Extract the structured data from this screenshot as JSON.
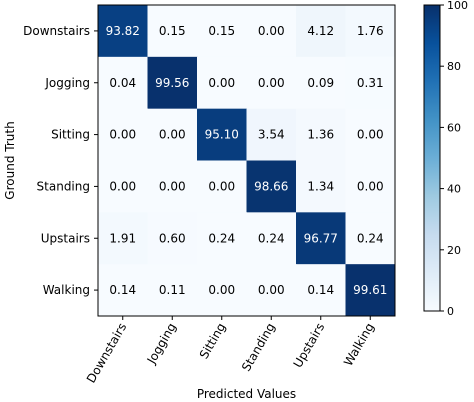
{
  "chart_data": {
    "type": "heatmap",
    "title": "",
    "xlabel": "Predicted Values",
    "ylabel": "Ground Truth",
    "x_categories": [
      "Downstairs",
      "Jogging",
      "Sitting",
      "Standing",
      "Upstairs",
      "Walking"
    ],
    "y_categories": [
      "Downstairs",
      "Jogging",
      "Sitting",
      "Standing",
      "Upstairs",
      "Walking"
    ],
    "values": [
      [
        93.82,
        0.15,
        0.15,
        0.0,
        4.12,
        1.76
      ],
      [
        0.04,
        99.56,
        0.0,
        0.0,
        0.09,
        0.31
      ],
      [
        0.0,
        0.0,
        95.1,
        3.54,
        1.36,
        0.0
      ],
      [
        0.0,
        0.0,
        0.0,
        98.66,
        1.34,
        0.0
      ],
      [
        1.91,
        0.6,
        0.24,
        0.24,
        96.77,
        0.24
      ],
      [
        0.14,
        0.11,
        0.0,
        0.0,
        0.14,
        99.61
      ]
    ],
    "value_labels": [
      [
        "93.82",
        "0.15",
        "0.15",
        "0.00",
        "4.12",
        "1.76"
      ],
      [
        "0.04",
        "99.56",
        "0.00",
        "0.00",
        "0.09",
        "0.31"
      ],
      [
        "0.00",
        "0.00",
        "95.10",
        "3.54",
        "1.36",
        "0.00"
      ],
      [
        "0.00",
        "0.00",
        "0.00",
        "98.66",
        "1.34",
        "0.00"
      ],
      [
        "1.91",
        "0.60",
        "0.24",
        "0.24",
        "96.77",
        "0.24"
      ],
      [
        "0.14",
        "0.11",
        "0.00",
        "0.00",
        "0.14",
        "99.61"
      ]
    ],
    "colormap": "Blues",
    "color_low": "#f7fbff",
    "color_high": "#08306b",
    "colorbar": {
      "range": [
        0,
        100
      ],
      "ticks": [
        0,
        20,
        40,
        60,
        80,
        100
      ],
      "tick_labels": [
        "0",
        "20",
        "40",
        "60",
        "80",
        "100"
      ]
    },
    "x_tick_rotation": "60 degrees",
    "grid": false
  }
}
